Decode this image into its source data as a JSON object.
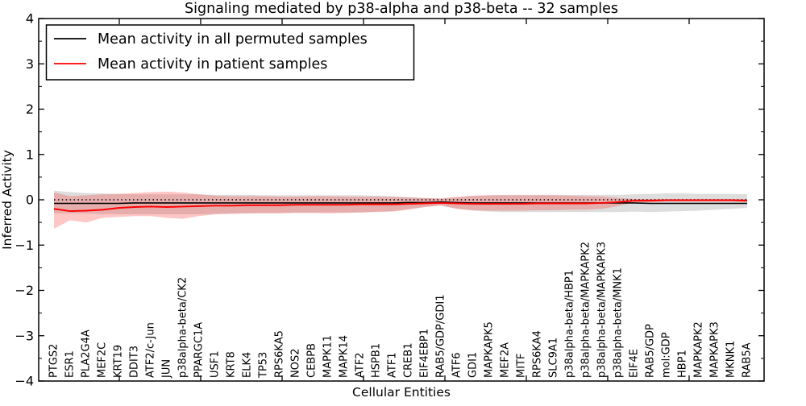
{
  "header": {
    "title": "Signaling mediated by p38-alpha and p38-beta -- 32 samples"
  },
  "legend": {
    "items": [
      {
        "label": "Mean activity in all permuted samples",
        "color": "#000000"
      },
      {
        "label": "Mean activity in patient samples",
        "color": "#ff0000"
      }
    ]
  },
  "axes": {
    "ylabel": "Inferred Activity",
    "xlabel": "Cellular Entities",
    "ytick_values": [
      4,
      3,
      2,
      1,
      0,
      -1,
      -2,
      -3,
      -4
    ],
    "ytick_labels": [
      "4",
      "3",
      "2",
      "1",
      "0",
      "−1",
      "−2",
      "−3",
      "−4"
    ]
  },
  "chart_data": {
    "type": "line",
    "title": "Signaling mediated by p38-alpha and p38-beta -- 32 samples",
    "xlabel": "Cellular Entities",
    "ylabel": "Inferred Activity",
    "ylim": [
      -4,
      4
    ],
    "grid": false,
    "legend_position": "upper left",
    "reference_line": {
      "y": 0,
      "style": "dotted",
      "color": "#000000"
    },
    "categories": [
      "PTGS2",
      "ESR1",
      "PLA2G4A",
      "MEF2C",
      "KRT19",
      "DDIT3",
      "ATF2/c-Jun",
      "JUN",
      "p38alpha-beta/CK2",
      "PPARGC1A",
      "USF1",
      "KRT8",
      "ELK4",
      "TP53",
      "RPS6KA5",
      "NOS2",
      "CEBPB",
      "MAPK11",
      "MAPK14",
      "ATF2",
      "HSPB1",
      "ATF1",
      "CREB1",
      "EIF4EBP1",
      "RAB5/GDP/GDI1",
      "ATF6",
      "GDI1",
      "MAPKAPK5",
      "MEF2A",
      "MITF",
      "RPS6KA4",
      "SLC9A1",
      "p38alpha-beta/HBP1",
      "p38alpha-beta/MAPKAPK2",
      "p38alpha-beta/MAPKAPK3",
      "p38alpha-beta/MNK1",
      "EIF4E",
      "RAB5/GDP",
      "mol:GDP",
      "HBP1",
      "MAPKAPK2",
      "MAPKAPK3",
      "MKNK1",
      "RAB5A"
    ],
    "series": [
      {
        "name": "Mean activity in all permuted samples",
        "color": "#000000",
        "band_color": "rgba(130,130,130,0.27)",
        "values": [
          -0.08,
          -0.08,
          -0.08,
          -0.08,
          -0.08,
          -0.07,
          -0.07,
          -0.07,
          -0.07,
          -0.07,
          -0.07,
          -0.07,
          -0.07,
          -0.07,
          -0.07,
          -0.07,
          -0.07,
          -0.07,
          -0.07,
          -0.07,
          -0.07,
          -0.07,
          -0.06,
          -0.06,
          -0.05,
          -0.06,
          -0.07,
          -0.07,
          -0.07,
          -0.07,
          -0.07,
          -0.07,
          -0.07,
          -0.07,
          -0.07,
          -0.07,
          -0.07,
          -0.08,
          -0.08,
          -0.08,
          -0.08,
          -0.08,
          -0.08,
          -0.08
        ],
        "band_upper": [
          0.2,
          0.17,
          0.15,
          0.14,
          0.13,
          0.12,
          0.12,
          0.12,
          0.12,
          0.12,
          0.11,
          0.11,
          0.11,
          0.1,
          0.1,
          0.1,
          0.1,
          0.1,
          0.1,
          0.1,
          0.09,
          0.08,
          0.06,
          0.04,
          0.03,
          0.06,
          0.09,
          0.1,
          0.11,
          0.11,
          0.11,
          0.11,
          0.11,
          0.11,
          0.11,
          0.11,
          0.12,
          0.13,
          0.14,
          0.14,
          0.13,
          0.13,
          0.13,
          0.12
        ],
        "band_lower": [
          -0.3,
          -0.3,
          -0.3,
          -0.31,
          -0.32,
          -0.32,
          -0.32,
          -0.32,
          -0.32,
          -0.32,
          -0.31,
          -0.3,
          -0.3,
          -0.29,
          -0.29,
          -0.28,
          -0.28,
          -0.28,
          -0.28,
          -0.28,
          -0.26,
          -0.25,
          -0.2,
          -0.16,
          -0.13,
          -0.2,
          -0.24,
          -0.26,
          -0.27,
          -0.27,
          -0.27,
          -0.27,
          -0.27,
          -0.27,
          -0.27,
          -0.27,
          -0.26,
          -0.27,
          -0.26,
          -0.25,
          -0.24,
          -0.22,
          -0.2,
          -0.18
        ]
      },
      {
        "name": "Mean activity in patient samples",
        "color": "#ff0000",
        "band_color": "rgba(255,45,45,0.27)",
        "values": [
          -0.2,
          -0.25,
          -0.24,
          -0.22,
          -0.18,
          -0.16,
          -0.15,
          -0.16,
          -0.15,
          -0.14,
          -0.13,
          -0.13,
          -0.12,
          -0.12,
          -0.12,
          -0.11,
          -0.11,
          -0.11,
          -0.11,
          -0.1,
          -0.1,
          -0.1,
          -0.09,
          -0.08,
          -0.07,
          -0.08,
          -0.09,
          -0.09,
          -0.09,
          -0.09,
          -0.08,
          -0.08,
          -0.08,
          -0.08,
          -0.07,
          -0.05,
          -0.02,
          -0.02,
          -0.01,
          -0.01,
          -0.01,
          -0.01,
          -0.01,
          -0.02
        ],
        "band_upper": [
          0.16,
          0.08,
          0.1,
          0.12,
          0.13,
          0.15,
          0.17,
          0.18,
          0.16,
          0.12,
          0.09,
          0.08,
          0.08,
          0.08,
          0.07,
          0.07,
          0.08,
          0.08,
          0.07,
          0.07,
          0.07,
          0.06,
          0.05,
          0.04,
          0.03,
          0.06,
          0.09,
          0.1,
          0.1,
          0.1,
          0.1,
          0.1,
          0.09,
          0.08,
          0.07,
          0.04,
          0.02,
          0.02,
          0.02,
          0.02,
          0.02,
          0.02,
          0.02,
          0.02
        ],
        "band_lower": [
          -0.64,
          -0.45,
          -0.5,
          -0.4,
          -0.38,
          -0.36,
          -0.36,
          -0.4,
          -0.42,
          -0.36,
          -0.32,
          -0.31,
          -0.3,
          -0.3,
          -0.3,
          -0.29,
          -0.29,
          -0.3,
          -0.29,
          -0.28,
          -0.27,
          -0.26,
          -0.22,
          -0.16,
          -0.12,
          -0.2,
          -0.23,
          -0.24,
          -0.24,
          -0.24,
          -0.23,
          -0.23,
          -0.22,
          -0.22,
          -0.2,
          -0.14,
          -0.05,
          -0.05,
          -0.04,
          -0.04,
          -0.04,
          -0.04,
          -0.04,
          -0.05
        ]
      }
    ]
  }
}
